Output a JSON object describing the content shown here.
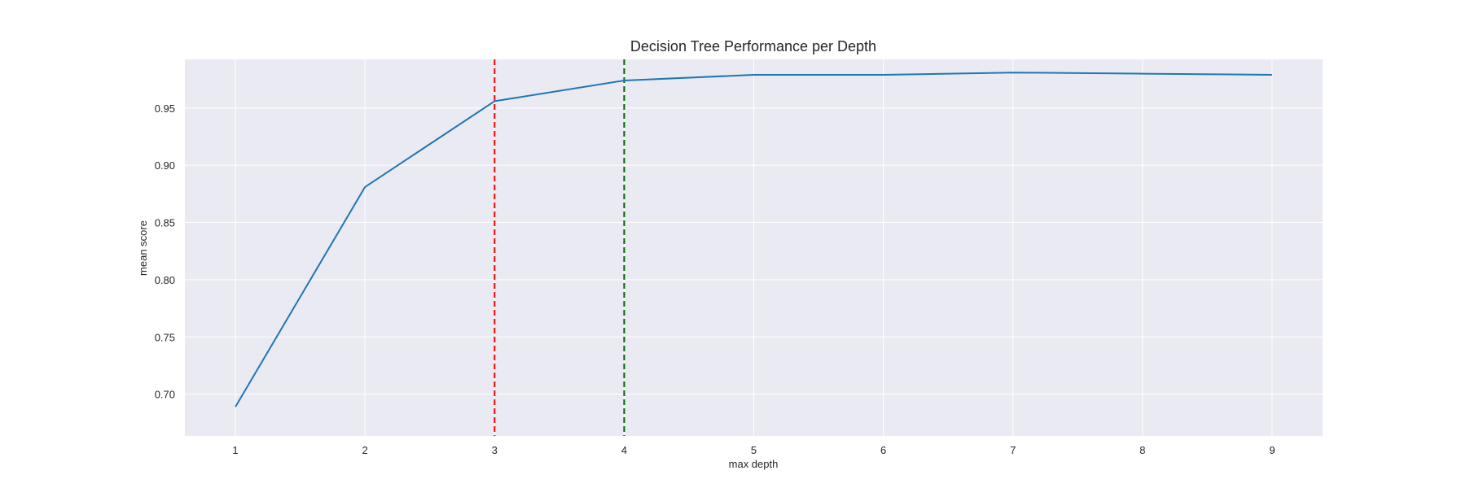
{
  "chart_data": {
    "type": "line",
    "title": "Decision Tree Performance per Depth",
    "xlabel": "max depth",
    "ylabel": "mean score",
    "x": [
      1,
      2,
      3,
      4,
      5,
      6,
      7,
      8,
      9
    ],
    "series": [
      {
        "values": [
          0.689,
          0.881,
          0.956,
          0.974,
          0.979,
          0.979,
          0.981,
          0.98,
          0.979
        ]
      }
    ],
    "xticks": [
      1,
      2,
      3,
      4,
      5,
      6,
      7,
      8,
      9
    ],
    "yticks": [
      "0.70",
      "0.75",
      "0.80",
      "0.85",
      "0.90",
      "0.95"
    ],
    "xlim": [
      0.61,
      9.39
    ],
    "ylim": [
      0.6635,
      0.9925
    ],
    "vlines": [
      {
        "x": 3,
        "color": "#ff0000",
        "style": "dashed"
      },
      {
        "x": 4,
        "color": "#006400",
        "style": "dashed"
      }
    ],
    "line_color": "#1f77b4",
    "background_color": "#eaeaf2",
    "grid": true,
    "legend": "none"
  }
}
